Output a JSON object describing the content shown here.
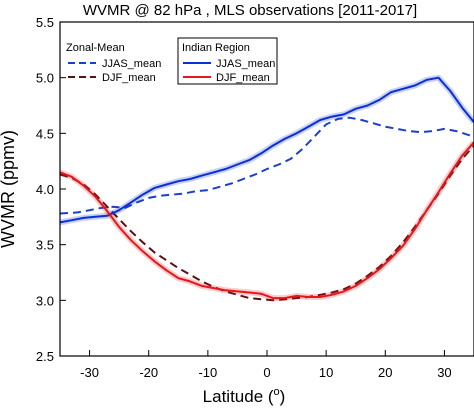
{
  "chart_data": {
    "type": "line",
    "title": "WVMR @ 82 hPa , MLS observations [2011-2017]",
    "xlabel_text": "Latitude (",
    "xlabel_sup": "o",
    "xlabel_close": ")",
    "ylabel": "WVMR (ppmv)",
    "xlim": [
      -35,
      35
    ],
    "ylim": [
      2.5,
      5.5
    ],
    "xticks": [
      -30,
      -20,
      -10,
      0,
      10,
      20,
      30
    ],
    "yticks": [
      2.5,
      3.0,
      3.5,
      4.0,
      4.5,
      5.0,
      5.5
    ],
    "grid": false,
    "legends": [
      {
        "title": "Zonal-Mean",
        "entries": [
          {
            "series": 0,
            "label": "JJAS_mean"
          },
          {
            "series": 1,
            "label": "DJF_mean"
          }
        ]
      },
      {
        "title": "Indian Region",
        "entries": [
          {
            "series": 2,
            "label": "JJAS_mean"
          },
          {
            "series": 3,
            "label": "DJF_mean"
          }
        ]
      }
    ],
    "series": [
      {
        "name": "JJAS_mean",
        "group": "Zonal-Mean",
        "color": "#1a3fcf",
        "dash": true,
        "x": [
          -35,
          -32,
          -30,
          -28,
          -26,
          -24,
          -22,
          -20,
          -18,
          -16,
          -14,
          -12,
          -10,
          -8,
          -6,
          -4,
          -2,
          0,
          2,
          4,
          6,
          8,
          10,
          12,
          14,
          16,
          18,
          20,
          22,
          24,
          26,
          28,
          30,
          32,
          35
        ],
        "y": [
          3.78,
          3.79,
          3.81,
          3.83,
          3.84,
          3.83,
          3.88,
          3.92,
          3.94,
          3.95,
          3.96,
          3.98,
          3.99,
          4.02,
          4.05,
          4.09,
          4.13,
          4.18,
          4.22,
          4.27,
          4.36,
          4.47,
          4.58,
          4.63,
          4.64,
          4.62,
          4.59,
          4.56,
          4.54,
          4.52,
          4.51,
          4.52,
          4.54,
          4.52,
          4.47
        ]
      },
      {
        "name": "DJF_mean",
        "group": "Zonal-Mean",
        "color": "#5b1010",
        "dash": true,
        "x": [
          -35,
          -33,
          -31,
          -29,
          -27,
          -25,
          -23,
          -21,
          -19,
          -17,
          -15,
          -13,
          -11,
          -9,
          -7,
          -5,
          -3,
          -1,
          1,
          3,
          5,
          7,
          9,
          11,
          13,
          15,
          17,
          19,
          21,
          23,
          25,
          27,
          29,
          31,
          33,
          35
        ],
        "y": [
          4.13,
          4.1,
          4.04,
          3.95,
          3.84,
          3.73,
          3.62,
          3.52,
          3.43,
          3.36,
          3.29,
          3.23,
          3.17,
          3.12,
          3.08,
          3.05,
          3.02,
          3.01,
          3.0,
          3.01,
          3.02,
          3.03,
          3.05,
          3.07,
          3.1,
          3.15,
          3.22,
          3.3,
          3.4,
          3.52,
          3.66,
          3.81,
          3.96,
          4.12,
          4.27,
          4.39
        ]
      },
      {
        "name": "JJAS_mean",
        "group": "Indian Region",
        "color": "#0a2fd6",
        "dash": false,
        "x": [
          -35,
          -33,
          -31,
          -29,
          -27,
          -25,
          -23,
          -21,
          -19,
          -17,
          -15,
          -13,
          -11,
          -9,
          -7,
          -5,
          -3,
          -1,
          1,
          3,
          5,
          7,
          9,
          11,
          13,
          15,
          17,
          19,
          21,
          23,
          25,
          27,
          29,
          31,
          33,
          35
        ],
        "y": [
          3.7,
          3.72,
          3.74,
          3.75,
          3.76,
          3.81,
          3.88,
          3.95,
          4.01,
          4.04,
          4.07,
          4.09,
          4.12,
          4.15,
          4.18,
          4.22,
          4.26,
          4.32,
          4.39,
          4.45,
          4.5,
          4.56,
          4.62,
          4.65,
          4.67,
          4.72,
          4.75,
          4.8,
          4.87,
          4.9,
          4.93,
          4.98,
          5.0,
          4.88,
          4.73,
          4.6
        ]
      },
      {
        "name": "DJF_mean",
        "group": "Indian Region",
        "color": "#e8161b",
        "dash": false,
        "x": [
          -35,
          -33,
          -31,
          -29,
          -27,
          -25,
          -23,
          -21,
          -19,
          -17,
          -15,
          -13,
          -11,
          -9,
          -7,
          -5,
          -3,
          -1,
          1,
          3,
          5,
          7,
          9,
          11,
          13,
          15,
          17,
          19,
          21,
          23,
          25,
          27,
          29,
          31,
          33,
          35
        ],
        "y": [
          4.15,
          4.11,
          4.03,
          3.93,
          3.8,
          3.66,
          3.54,
          3.44,
          3.35,
          3.27,
          3.2,
          3.17,
          3.13,
          3.11,
          3.09,
          3.08,
          3.07,
          3.06,
          3.02,
          3.02,
          3.04,
          3.03,
          3.03,
          3.05,
          3.08,
          3.13,
          3.2,
          3.28,
          3.38,
          3.49,
          3.64,
          3.81,
          3.97,
          4.14,
          4.3,
          4.42
        ]
      }
    ]
  }
}
